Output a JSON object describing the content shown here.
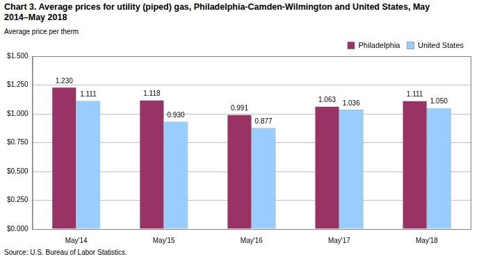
{
  "chart_data": {
    "type": "bar",
    "title": "Chart 3. Average prices for utility (piped) gas, Philadelphia-Camden-Wilmington and United States, May 2014–May 2018",
    "y_label": "Average price per therm",
    "source": "Source: U.S. Bureau of Labor Statistics.",
    "categories": [
      "May'14",
      "May'15",
      "May'16",
      "May'17",
      "May'18"
    ],
    "series": [
      {
        "name": "Philadelphia",
        "color": "#993366",
        "values": [
          1.23,
          1.118,
          0.991,
          1.063,
          1.111
        ],
        "value_labels": [
          "1.230",
          "1.118",
          "0.991",
          "1.063",
          "1.111"
        ]
      },
      {
        "name": "United States",
        "color": "#99ccff",
        "values": [
          1.111,
          0.93,
          0.877,
          1.036,
          1.05
        ],
        "value_labels": [
          "1.111",
          "0.930",
          "0.877",
          "1.036",
          "1.050"
        ]
      }
    ],
    "ylim": [
      0,
      1.5
    ],
    "yticks": [
      {
        "value": 0,
        "label": "$0.000"
      },
      {
        "value": 0.25,
        "label": "$0.250"
      },
      {
        "value": 0.5,
        "label": "$0.500"
      },
      {
        "value": 0.75,
        "label": "$0.750"
      },
      {
        "value": 1,
        "label": "$1.000"
      },
      {
        "value": 1.25,
        "label": "$1.250"
      },
      {
        "value": 1.5,
        "label": "$1.500"
      }
    ],
    "grid": true,
    "legend": "top-right",
    "data_labels": true
  }
}
